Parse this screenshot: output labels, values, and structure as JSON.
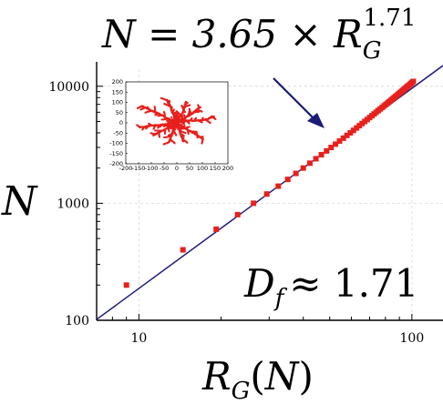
{
  "chart_data": [
    {
      "type": "scatter",
      "title": "",
      "xscale": "log",
      "yscale": "log",
      "xlim": [
        7,
        130
      ],
      "ylim": [
        100,
        14000
      ],
      "x_ticks": [
        "10",
        "100"
      ],
      "y_ticks": [
        "100",
        "1000",
        "10000"
      ],
      "xlabel": "R_G(N)",
      "ylabel": "N",
      "grid": true,
      "fit": {
        "formula": "N = 3.65 × R_G^{1.71}",
        "lhs": "N = 3.65 × R",
        "sub": "G",
        "sup": "1.71",
        "prefactor": 3.65,
        "exponent": 1.71,
        "color": "#1a1a7a"
      },
      "annotation": {
        "lhs": "D",
        "sub": "f",
        "rhs": "≈ 1.71"
      },
      "marker_color": "#e8201c",
      "series": [
        {
          "x": [
            9,
            14.5,
            19.2,
            23,
            26.3,
            29.4,
            32.4,
            35.1,
            37.6,
            40,
            42.3,
            44.5,
            46.6,
            48.7,
            50.6,
            52.5,
            54.3,
            56.1,
            57.8,
            59.5,
            61.1,
            62.7,
            64.2,
            65.7,
            67.2,
            68.6,
            70,
            71.4,
            72.7,
            74,
            75.3,
            76.6,
            77.9,
            79.1,
            80.3,
            81.5,
            82.7,
            83.9,
            85,
            86.1,
            87.2,
            88.3,
            89.4,
            90.5,
            91.5,
            92.5,
            93.5,
            94.5,
            95.5,
            96.5,
            97.5,
            98.5,
            99.4,
            100.3,
            101.2
          ],
          "y": [
            200,
            400,
            600,
            800,
            1000,
            1200,
            1400,
            1600,
            1800,
            2000,
            2200,
            2400,
            2600,
            2800,
            3000,
            3200,
            3400,
            3600,
            3800,
            4000,
            4200,
            4400,
            4600,
            4800,
            5000,
            5200,
            5400,
            5600,
            5800,
            6000,
            6200,
            6400,
            6600,
            6800,
            7000,
            7200,
            7400,
            7600,
            7800,
            8000,
            8200,
            8400,
            8600,
            8800,
            9000,
            9200,
            9400,
            9600,
            9800,
            10000,
            10200,
            10400,
            10600,
            10800,
            11000
          ]
        }
      ]
    },
    {
      "type": "scatter",
      "title": "",
      "xlim": [
        -200,
        200
      ],
      "ylim": [
        -200,
        200
      ],
      "x_ticks": [
        "-200",
        "-150",
        "-100",
        "-50",
        "0",
        "50",
        "100",
        "150",
        "200"
      ],
      "y_ticks": [
        "200",
        "150",
        "100",
        "50",
        "0",
        "-50",
        "-100",
        "-150",
        "-200"
      ],
      "marker_color": "#e8201c",
      "description_series": "aggregate cluster points",
      "arms": [
        {
          "angle": 10,
          "length": 150
        },
        {
          "angle": 40,
          "length": 120
        },
        {
          "angle": 75,
          "length": 110
        },
        {
          "angle": 110,
          "length": 120
        },
        {
          "angle": 150,
          "length": 160
        },
        {
          "angle": 185,
          "length": 150
        },
        {
          "angle": 215,
          "length": 110
        },
        {
          "angle": 250,
          "length": 100
        },
        {
          "angle": 285,
          "length": 95
        },
        {
          "angle": 320,
          "length": 130
        }
      ]
    }
  ]
}
